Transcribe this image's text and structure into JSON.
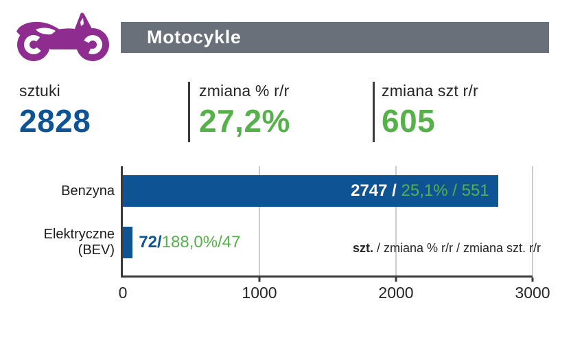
{
  "header": {
    "title": "Motocykle"
  },
  "icon": {
    "name": "motorcycle-icon",
    "color": "#8e2c90"
  },
  "stats": [
    {
      "label": "sztuki",
      "value": "2828",
      "color": "#0e5394"
    },
    {
      "label": "zmiana % r/r",
      "value": "27,2%",
      "color": "#56b14b"
    },
    {
      "label": "zmiana szt r/r",
      "value": "605",
      "color": "#56b14b"
    }
  ],
  "chart_data": {
    "type": "bar",
    "orientation": "horizontal",
    "title": "",
    "xlabel": "",
    "ylabel": "",
    "xlim": [
      0,
      3000
    ],
    "xticks": [
      0,
      1000,
      2000,
      3000
    ],
    "grid": "vertical-gridlines-at-1000-2000-3000",
    "bar_color": "#0e5394",
    "categories": [
      "Benzyna",
      "Elektryczne (BEV)"
    ],
    "values": [
      2747,
      72
    ],
    "series": [
      {
        "name": "szt.",
        "values": [
          2747,
          72
        ]
      },
      {
        "name": "zmiana % r/r",
        "values": [
          "25,1%",
          "188,0%"
        ]
      },
      {
        "name": "zmiana szt. r/r",
        "values": [
          551,
          47
        ]
      }
    ],
    "separator": " / ",
    "bars": [
      {
        "label": "Benzyna",
        "szt": "2747",
        "zmiana_pct": "25,1%",
        "zmiana_szt": "551"
      },
      {
        "label_line1": "Elektryczne",
        "label_line2": "(BEV)",
        "szt": "72",
        "zmiana_pct": "188,0%",
        "zmiana_szt": "47"
      }
    ],
    "legend_note": {
      "bold": "szt.",
      "rest": " / zmiana % r/r / zmiana szt. r/r"
    }
  },
  "colors": {
    "purple": "#8e2c90",
    "header_gray": "#69707a",
    "blue": "#0e5394",
    "green": "#56b14b",
    "dark": "#262427",
    "axis": "#3b3a39",
    "grid": "#cccccc"
  }
}
